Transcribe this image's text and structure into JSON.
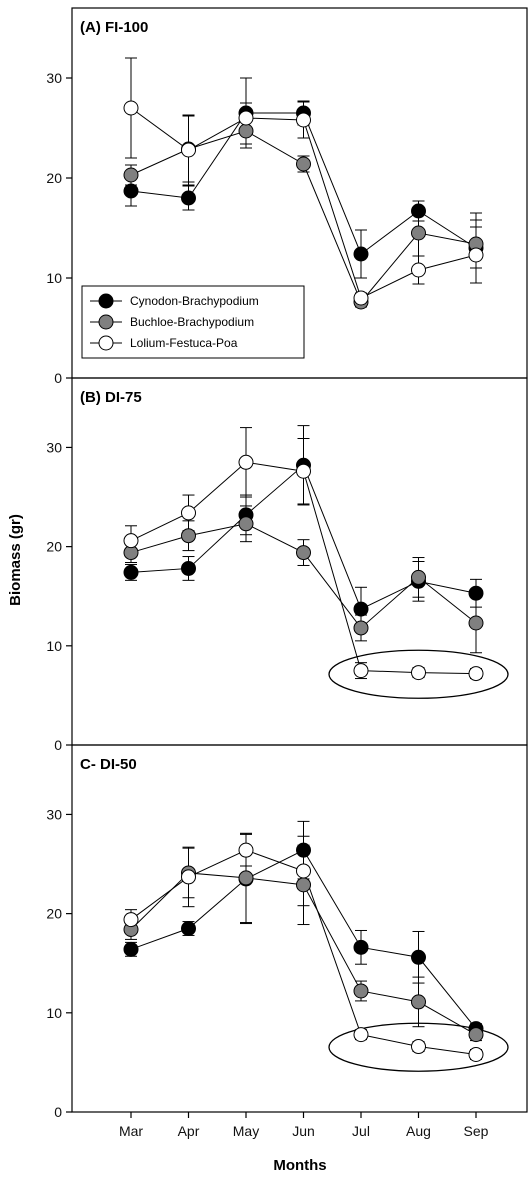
{
  "chart_data": {
    "type": "line",
    "xlabel": "Months",
    "ylabel": "Biomass (gr)",
    "categories": [
      "Mar",
      "Apr",
      "May",
      "Jun",
      "Jul",
      "Aug",
      "Sep"
    ],
    "ylim": [
      0,
      37
    ],
    "yticks": [
      0,
      10,
      20,
      30
    ],
    "legend": {
      "placement": "lower-left of top panel",
      "entries": [
        "Cynodon-Brachypodium",
        "Buchloe-Brachypodium",
        "Lolium-Festuca-Poa"
      ]
    },
    "series_styles": [
      {
        "name": "Cynodon-Brachypodium",
        "fill": "#000000"
      },
      {
        "name": "Buchloe-Brachypodium",
        "fill": "#808080"
      },
      {
        "name": "Lolium-Festuca-Poa",
        "fill": "#ffffff"
      }
    ],
    "panels": [
      {
        "title": "(A) FI-100",
        "series": [
          {
            "name": "Cynodon-Brachypodium",
            "values": [
              18.7,
              18.0,
              26.5,
              26.5,
              12.4,
              16.7,
              13.0
            ],
            "errors": [
              1.5,
              1.2,
              3.5,
              1.2,
              2.4,
              1.0,
              3.5
            ]
          },
          {
            "name": "Buchloe-Brachypodium",
            "values": [
              20.3,
              22.9,
              24.7,
              21.4,
              7.6,
              14.5,
              13.4
            ],
            "errors": [
              1.0,
              3.3,
              1.3,
              0.8,
              0.5,
              2.3,
              2.4
            ]
          },
          {
            "name": "Lolium-Festuca-Poa",
            "values": [
              27.0,
              22.8,
              26.0,
              25.8,
              8.0,
              10.8,
              12.3
            ],
            "errors": [
              5.0,
              3.5,
              1.5,
              1.8,
              0.5,
              1.4,
              2.8
            ]
          }
        ]
      },
      {
        "title": "(B) DI-75",
        "series": [
          {
            "name": "Cynodon-Brachypodium",
            "values": [
              17.4,
              17.8,
              23.2,
              28.2,
              13.7,
              16.5,
              15.3
            ],
            "errors": [
              0.8,
              1.2,
              2.0,
              4.0,
              2.2,
              2.0,
              1.4
            ]
          },
          {
            "name": "Buchloe-Brachypodium",
            "values": [
              19.4,
              21.1,
              22.3,
              19.4,
              11.8,
              16.9,
              12.3
            ],
            "errors": [
              1.0,
              1.5,
              1.8,
              1.3,
              1.3,
              2.0,
              3.0
            ]
          },
          {
            "name": "Lolium-Festuca-Poa",
            "values": [
              20.6,
              23.4,
              28.5,
              27.6,
              7.5,
              7.3,
              7.2
            ],
            "errors": [
              1.5,
              1.8,
              3.5,
              3.3,
              0.8,
              0.5,
              0.5
            ]
          }
        ],
        "annotation": "ellipse around Lolium-Festuca-Poa points Jul-Sep"
      },
      {
        "title": "C- DI-50",
        "series": [
          {
            "name": "Cynodon-Brachypodium",
            "values": [
              16.4,
              18.5,
              23.5,
              26.4,
              16.6,
              15.6,
              8.4
            ],
            "errors": [
              0.7,
              0.7,
              4.5,
              2.9,
              1.7,
              2.6,
              0.5
            ]
          },
          {
            "name": "Buchloe-Brachypodium",
            "values": [
              18.4,
              24.1,
              23.6,
              22.9,
              12.2,
              11.1,
              7.8
            ],
            "errors": [
              1.0,
              2.5,
              4.5,
              4.0,
              1.0,
              2.5,
              0.6
            ]
          },
          {
            "name": "Lolium-Festuca-Poa",
            "values": [
              19.4,
              23.7,
              26.4,
              24.3,
              7.8,
              6.6,
              5.8
            ],
            "errors": [
              1.0,
              3.0,
              1.6,
              3.5,
              0.5,
              0.5,
              0.5
            ]
          }
        ],
        "annotation": "ellipse around Lolium-Festuca-Poa points Jul-Sep"
      }
    ]
  }
}
